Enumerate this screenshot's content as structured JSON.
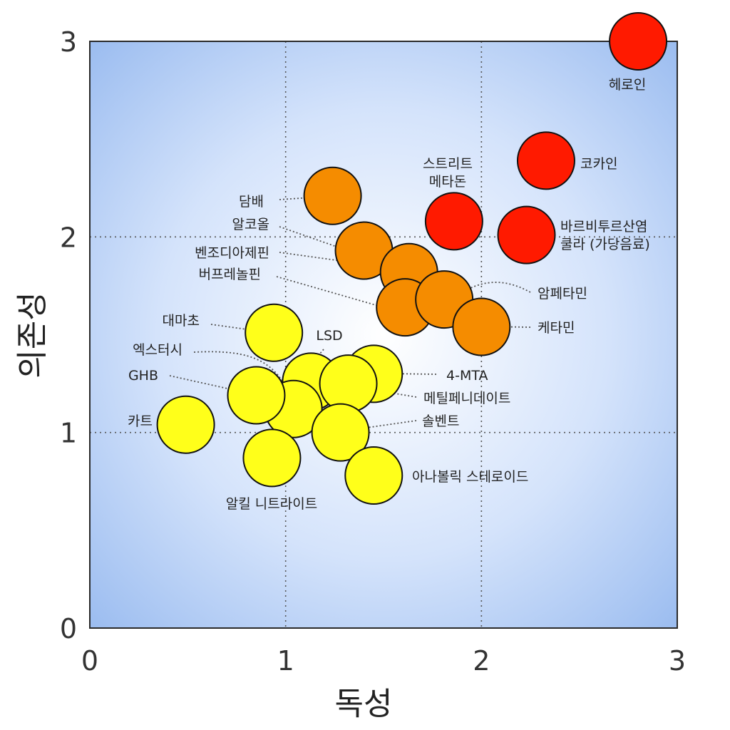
{
  "chart_data": {
    "type": "scatter",
    "title": "",
    "xlabel": "독성",
    "ylabel": "의존성",
    "xlim": [
      0,
      3
    ],
    "ylim": [
      0,
      3
    ],
    "xticks": [
      "0",
      "1",
      "2",
      "3"
    ],
    "yticks": [
      "0",
      "1",
      "2",
      "3"
    ],
    "grid": true,
    "colors": {
      "red": "#ff1a00",
      "orange": "#f58c00",
      "yellow": "#ffff1a"
    },
    "points": [
      {
        "label": "헤로인",
        "x": 2.8,
        "y": 3.0,
        "color": "red"
      },
      {
        "label": "코카인",
        "x": 2.33,
        "y": 2.39,
        "color": "red"
      },
      {
        "label": "스트리트\n메타돈",
        "x": 1.86,
        "y": 2.08,
        "color": "red"
      },
      {
        "label": "바르비투르산염\n쿨라 (가당음료)",
        "x": 2.23,
        "y": 2.01,
        "color": "red"
      },
      {
        "label": "담배",
        "x": 1.24,
        "y": 2.21,
        "color": "orange"
      },
      {
        "label": "알코올",
        "x": 1.4,
        "y": 1.93,
        "color": "orange"
      },
      {
        "label": "벤조디아제핀",
        "x": 1.63,
        "y": 1.82,
        "color": "orange"
      },
      {
        "label": "버프레놀핀",
        "x": 1.61,
        "y": 1.64,
        "color": "orange"
      },
      {
        "label": "암페타민",
        "x": 1.81,
        "y": 1.68,
        "color": "orange"
      },
      {
        "label": "케타민",
        "x": 2.0,
        "y": 1.54,
        "color": "orange"
      },
      {
        "label": "대마초",
        "x": 0.94,
        "y": 1.51,
        "color": "yellow"
      },
      {
        "label": "LSD",
        "x": 1.13,
        "y": 1.26,
        "color": "yellow"
      },
      {
        "label": "4-MTA",
        "x": 1.45,
        "y": 1.3,
        "color": "yellow"
      },
      {
        "label": "메틸페니데이트",
        "x": 1.32,
        "y": 1.25,
        "color": "yellow"
      },
      {
        "label": "엑스터시",
        "x": 1.04,
        "y": 1.12,
        "color": "yellow"
      },
      {
        "label": "GHB",
        "x": 0.85,
        "y": 1.19,
        "color": "yellow"
      },
      {
        "label": "카트",
        "x": 0.49,
        "y": 1.04,
        "color": "yellow"
      },
      {
        "label": "솔벤트",
        "x": 1.28,
        "y": 1.0,
        "color": "yellow"
      },
      {
        "label": "알킬 니트라이트",
        "x": 0.93,
        "y": 0.87,
        "color": "yellow"
      },
      {
        "label": "아나볼릭 스테로이드",
        "x": 1.45,
        "y": 0.78,
        "color": "yellow"
      }
    ]
  }
}
